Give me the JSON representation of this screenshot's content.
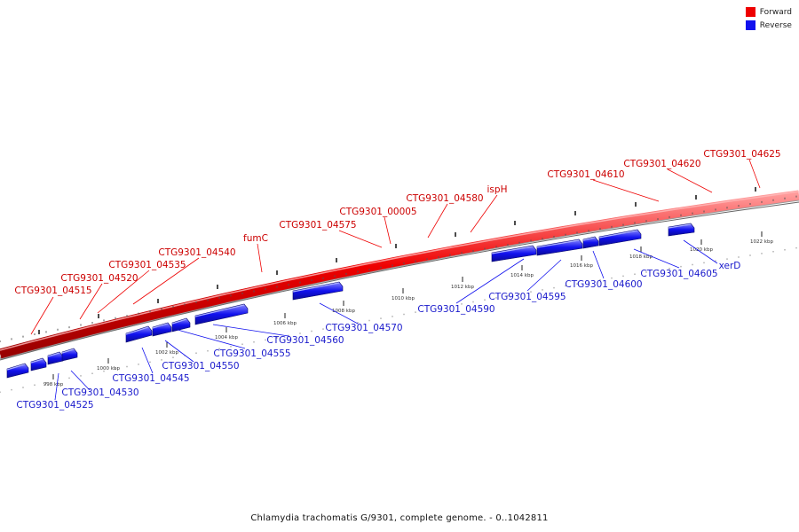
{
  "legend": {
    "items": [
      {
        "label": "Forward",
        "color": "#ee0000"
      },
      {
        "label": "Reverse",
        "color": "#1111ee"
      }
    ]
  },
  "caption": "Chlamydia trachomatis G/9301, complete genome. - 0..1042811",
  "ticks": [
    "998 kbp",
    "1000 kbp",
    "1002 kbp",
    "1004 kbp",
    "1006 kbp",
    "1008 kbp",
    "1010 kbp",
    "1012 kbp",
    "1014 kbp",
    "1016 kbp",
    "1018 kbp",
    "1020 kbp",
    "1022 kbp"
  ],
  "forward_labels": [
    "CTG9301_04515",
    "CTG9301_04520",
    "CTG9301_04535",
    "CTG9301_04540",
    "fumC",
    "CTG9301_04575",
    "CTG9301_00005",
    "CTG9301_04580",
    "ispH",
    "CTG9301_04610",
    "CTG9301_04620",
    "CTG9301_04625"
  ],
  "reverse_labels": [
    "CTG9301_04525",
    "CTG9301_04530",
    "CTG9301_04545",
    "CTG9301_04550",
    "CTG9301_04555",
    "CTG9301_04560",
    "CTG9301_04570",
    "CTG9301_04590",
    "CTG9301_04595",
    "CTG9301_04600",
    "CTG9301_04605",
    "xerD"
  ],
  "colors": {
    "forward": "#ee0000",
    "forward_label": "#cc0000",
    "reverse": "#1111ee",
    "reverse_label": "#1a1acc"
  }
}
